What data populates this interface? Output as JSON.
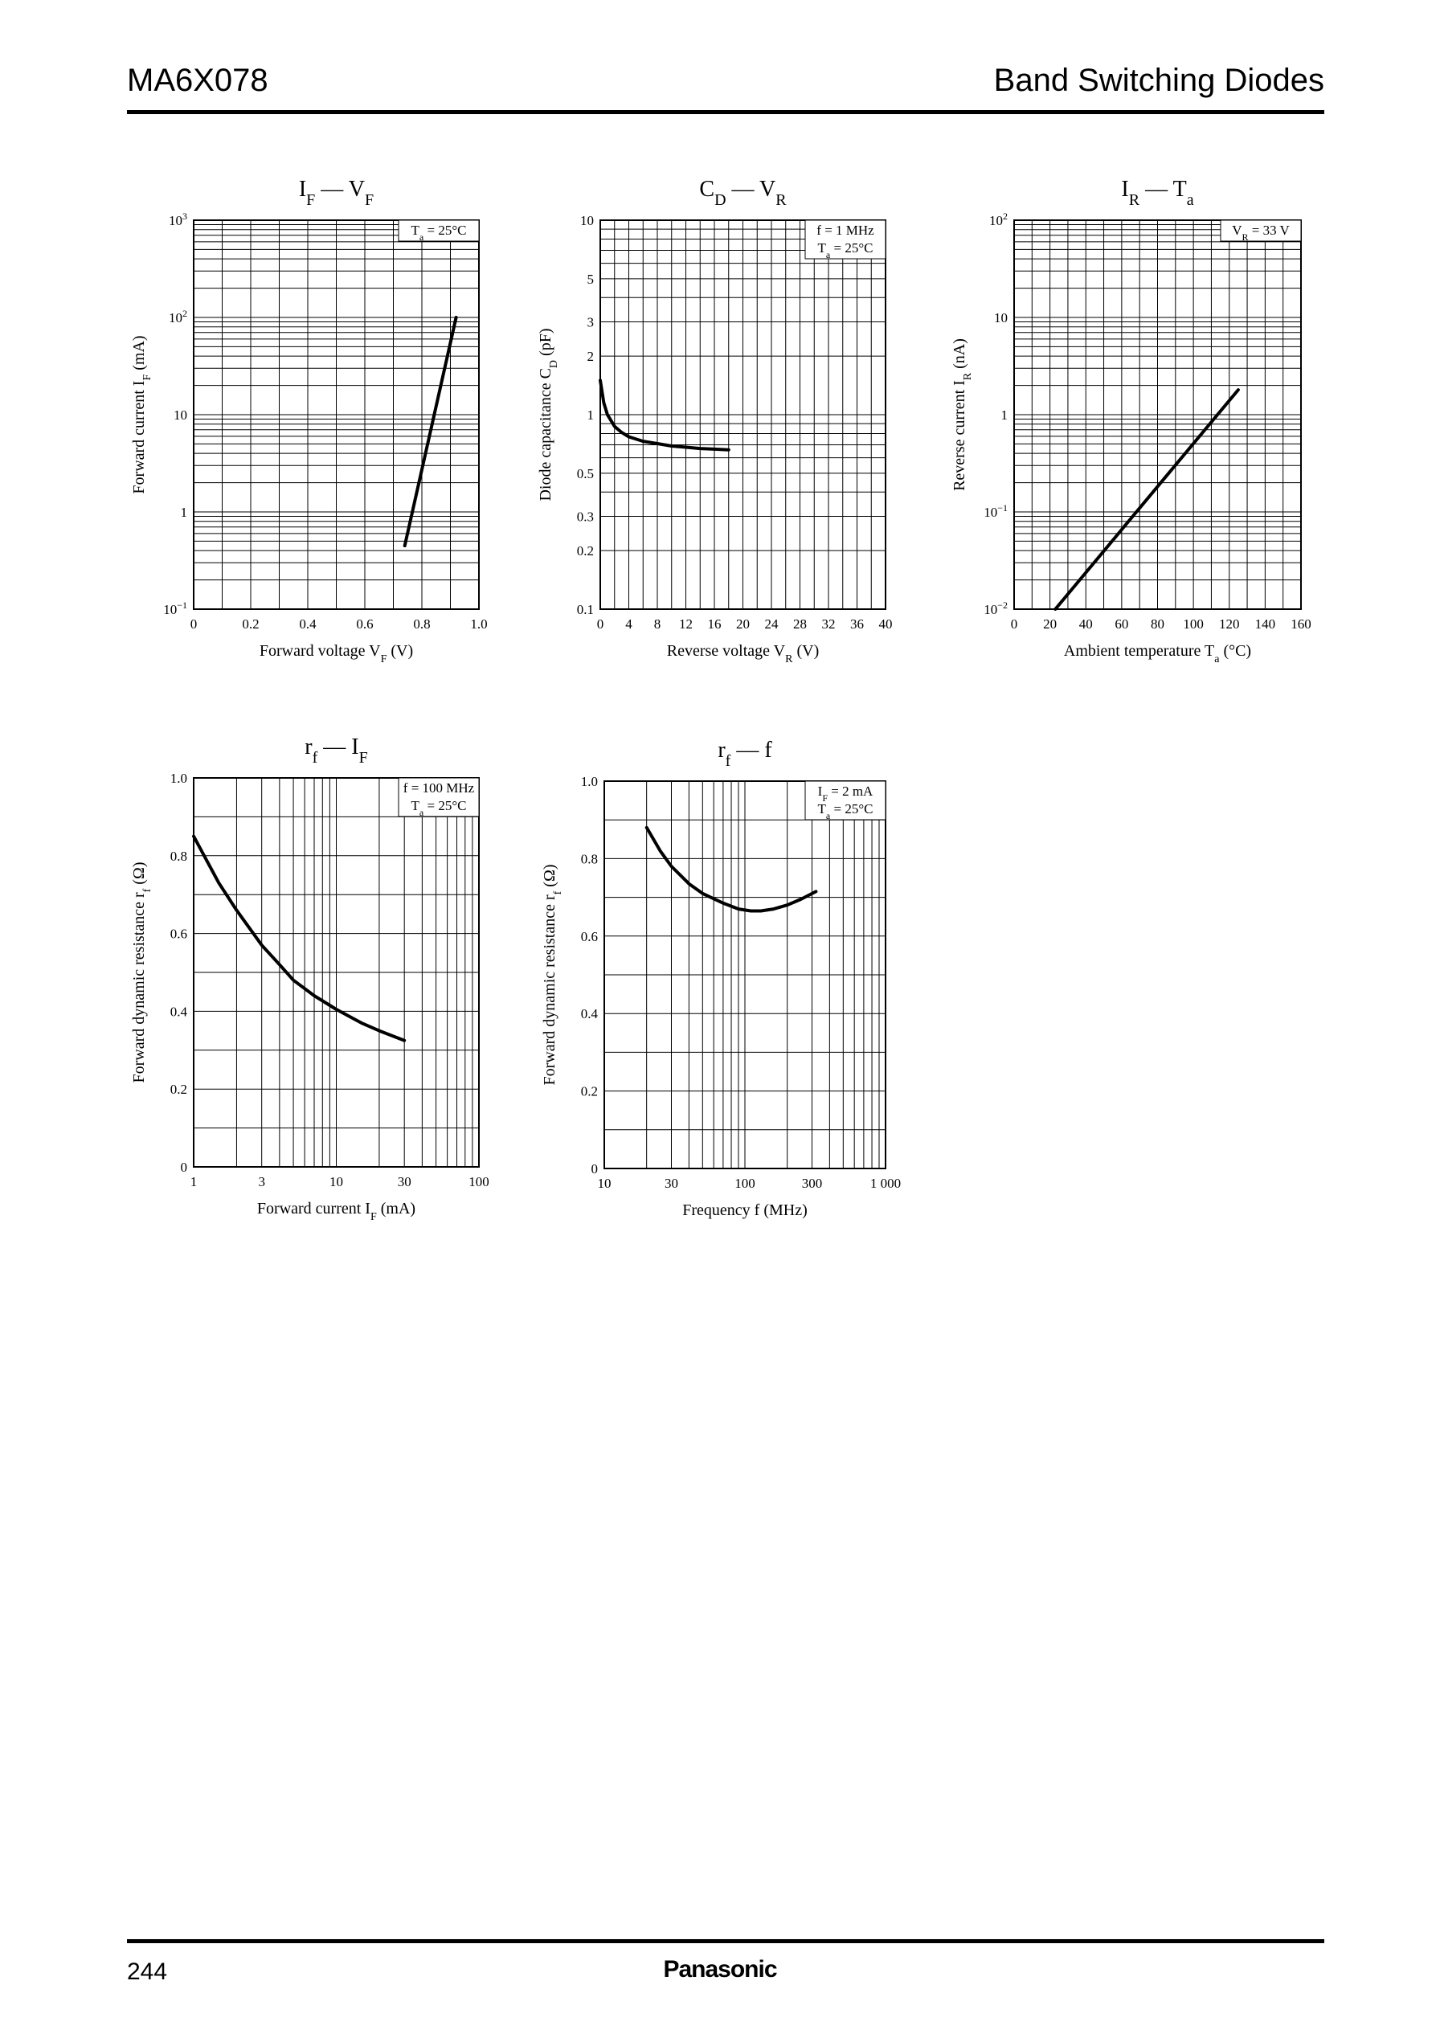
{
  "header": {
    "part_number": "MA6X078",
    "category": "Band Switching Diodes"
  },
  "footer": {
    "page_number": "244",
    "brand": "Panasonic"
  },
  "chart_data": [
    {
      "id": "if-vf",
      "type": "line",
      "title": {
        "main": "I",
        "main_sub": "F",
        "dash": " — ",
        "second": "V",
        "second_sub": "F"
      },
      "xlabel": {
        "text": "Forward voltage  V",
        "sub": "F",
        "unit": "  (V)"
      },
      "ylabel": {
        "text": "Forward current  I",
        "sub": "F",
        "unit": "  (mA)"
      },
      "x_scale": "linear",
      "xlim": [
        0,
        1.0
      ],
      "x_ticks": [
        0,
        0.2,
        0.4,
        0.6,
        0.8,
        1.0
      ],
      "x_tick_labels": [
        "0",
        "0.2",
        "0.4",
        "0.6",
        "0.8",
        "1.0"
      ],
      "y_scale": "log",
      "ylim": [
        0.1,
        1000
      ],
      "y_ticks": [
        0.1,
        1,
        10,
        100,
        1000
      ],
      "y_tick_labels": [
        {
          "base": "10",
          "exp": "−1"
        },
        {
          "base": "1",
          "exp": ""
        },
        {
          "base": "10",
          "exp": ""
        },
        {
          "base": "10",
          "exp": "2"
        },
        {
          "base": "10",
          "exp": "3"
        }
      ],
      "conditions": [
        {
          "a": "T",
          "sub": "a",
          "b": " = 25°C"
        }
      ],
      "series": [
        {
          "x": [
            0.74,
            0.92
          ],
          "y": [
            0.45,
            100
          ]
        }
      ],
      "grid": true
    },
    {
      "id": "cd-vr",
      "type": "line",
      "title": {
        "main": "C",
        "main_sub": "D",
        "dash": " — ",
        "second": "V",
        "second_sub": "R"
      },
      "xlabel": {
        "text": "Reverse voltage  V",
        "sub": "R",
        "unit": "  (V)"
      },
      "ylabel": {
        "text": "Diode capacitance  C",
        "sub": "D",
        "unit": "  (pF)"
      },
      "x_scale": "linear",
      "xlim": [
        0,
        40
      ],
      "x_ticks": [
        0,
        4,
        8,
        12,
        16,
        20,
        24,
        28,
        32,
        36,
        40
      ],
      "x_tick_labels": [
        "0",
        "4",
        "8",
        "12",
        "16",
        "20",
        "24",
        "28",
        "32",
        "36",
        "40"
      ],
      "y_scale": "log",
      "ylim": [
        0.1,
        10
      ],
      "y_ticks": [
        0.1,
        0.2,
        0.3,
        0.5,
        1,
        2,
        3,
        5,
        10
      ],
      "y_tick_labels": [
        {
          "base": "0.1",
          "exp": ""
        },
        {
          "base": "0.2",
          "exp": ""
        },
        {
          "base": "0.3",
          "exp": ""
        },
        {
          "base": "0.5",
          "exp": ""
        },
        {
          "base": "1",
          "exp": ""
        },
        {
          "base": "2",
          "exp": ""
        },
        {
          "base": "3",
          "exp": ""
        },
        {
          "base": "5",
          "exp": ""
        },
        {
          "base": "10",
          "exp": ""
        }
      ],
      "conditions": [
        {
          "a": "f = 1 MHz",
          "sub": "",
          "b": ""
        },
        {
          "a": "T",
          "sub": "a",
          "b": " = 25°C"
        }
      ],
      "series": [
        {
          "x": [
            0,
            0.5,
            1,
            2,
            3,
            4,
            6,
            8,
            10,
            12,
            14,
            16,
            18
          ],
          "y": [
            1.5,
            1.15,
            1.0,
            0.87,
            0.81,
            0.77,
            0.73,
            0.71,
            0.69,
            0.68,
            0.67,
            0.665,
            0.66
          ]
        }
      ],
      "grid": true
    },
    {
      "id": "ir-ta",
      "type": "line",
      "title": {
        "main": "I",
        "main_sub": "R",
        "dash": " — ",
        "second": "T",
        "second_sub": "a"
      },
      "xlabel": {
        "text": "Ambient temperature  T",
        "sub": "a",
        "unit": "  (°C)"
      },
      "ylabel": {
        "text": "Reverse current  I",
        "sub": "R",
        "unit": "  (nA)"
      },
      "x_scale": "linear",
      "xlim": [
        0,
        160
      ],
      "x_ticks": [
        0,
        20,
        40,
        60,
        80,
        100,
        120,
        140,
        160
      ],
      "x_tick_labels": [
        "0",
        "20",
        "40",
        "60",
        "80",
        "100",
        "120",
        "140",
        "160"
      ],
      "y_scale": "log",
      "ylim": [
        0.01,
        100
      ],
      "y_ticks": [
        0.01,
        0.1,
        1,
        10,
        100
      ],
      "y_tick_labels": [
        {
          "base": "10",
          "exp": "−2"
        },
        {
          "base": "10",
          "exp": "−1"
        },
        {
          "base": "1",
          "exp": ""
        },
        {
          "base": "10",
          "exp": ""
        },
        {
          "base": "10",
          "exp": "2"
        }
      ],
      "conditions": [
        {
          "a": "V",
          "sub": "R",
          "b": " = 33 V"
        }
      ],
      "series": [
        {
          "x": [
            23,
            125
          ],
          "y": [
            0.01,
            1.8
          ]
        }
      ],
      "grid": true
    },
    {
      "id": "rf-if",
      "type": "line",
      "title": {
        "main": "r",
        "main_sub": "f",
        "dash": " — ",
        "second": "I",
        "second_sub": "F"
      },
      "xlabel": {
        "text": "Forward current  I",
        "sub": "F",
        "unit": "  (mA)"
      },
      "ylabel": {
        "text": "Forward dynamic resistance  r",
        "sub": "f",
        "unit": "  (Ω)"
      },
      "x_scale": "log",
      "xlim": [
        1,
        100
      ],
      "x_ticks": [
        1,
        3,
        10,
        30,
        100
      ],
      "x_tick_labels": [
        "1",
        "3",
        "10",
        "30",
        "100"
      ],
      "y_scale": "linear",
      "ylim": [
        0,
        1.0
      ],
      "y_ticks": [
        0,
        0.2,
        0.4,
        0.6,
        0.8,
        1.0
      ],
      "y_tick_labels": [
        {
          "base": "0",
          "exp": ""
        },
        {
          "base": "0.2",
          "exp": ""
        },
        {
          "base": "0.4",
          "exp": ""
        },
        {
          "base": "0.6",
          "exp": ""
        },
        {
          "base": "0.8",
          "exp": ""
        },
        {
          "base": "1.0",
          "exp": ""
        }
      ],
      "conditions": [
        {
          "a": "f = 100 MHz",
          "sub": "",
          "b": ""
        },
        {
          "a": "T",
          "sub": "a",
          "b": " = 25°C"
        }
      ],
      "series": [
        {
          "x": [
            1,
            1.5,
            2,
            3,
            4,
            5,
            7,
            10,
            15,
            20,
            30
          ],
          "y": [
            0.85,
            0.73,
            0.66,
            0.57,
            0.52,
            0.48,
            0.44,
            0.405,
            0.37,
            0.35,
            0.325
          ]
        }
      ],
      "grid": true
    },
    {
      "id": "rf-f",
      "type": "line",
      "title": {
        "main": "r",
        "main_sub": "f",
        "dash": " — ",
        "second": "f",
        "second_sub": ""
      },
      "xlabel": {
        "text": "Frequency   f",
        "sub": "",
        "unit": "  (MHz)"
      },
      "ylabel": {
        "text": "Forward dynamic resistance  r",
        "sub": "f",
        "unit": "  (Ω)"
      },
      "x_scale": "log",
      "xlim": [
        10,
        1000
      ],
      "x_ticks": [
        10,
        30,
        100,
        300,
        1000
      ],
      "x_tick_labels": [
        "10",
        "30",
        "100",
        "300",
        "1 000"
      ],
      "y_scale": "linear",
      "ylim": [
        0,
        1.0
      ],
      "y_ticks": [
        0,
        0.2,
        0.4,
        0.6,
        0.8,
        1.0
      ],
      "y_tick_labels": [
        {
          "base": "0",
          "exp": ""
        },
        {
          "base": "0.2",
          "exp": ""
        },
        {
          "base": "0.4",
          "exp": ""
        },
        {
          "base": "0.6",
          "exp": ""
        },
        {
          "base": "0.8",
          "exp": ""
        },
        {
          "base": "1.0",
          "exp": ""
        }
      ],
      "conditions": [
        {
          "a": "I",
          "sub": "F",
          "b": " = 2 mA"
        },
        {
          "a": "T",
          "sub": "a",
          "b": " = 25°C"
        }
      ],
      "series": [
        {
          "x": [
            20,
            25,
            30,
            40,
            50,
            70,
            90,
            110,
            130,
            160,
            200,
            250,
            320
          ],
          "y": [
            0.88,
            0.82,
            0.78,
            0.735,
            0.71,
            0.685,
            0.67,
            0.665,
            0.665,
            0.67,
            0.68,
            0.695,
            0.715
          ]
        }
      ],
      "grid": true
    }
  ]
}
